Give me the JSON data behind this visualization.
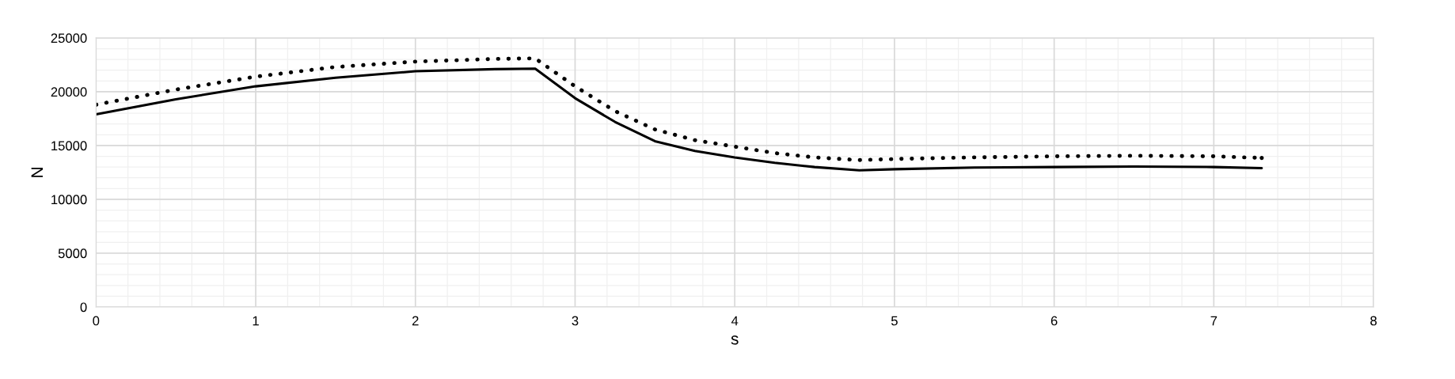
{
  "chart_data": {
    "type": "line",
    "xlabel": "s",
    "ylabel": "N",
    "xlim": [
      0,
      8
    ],
    "xticks": [
      0,
      1,
      2,
      3,
      4,
      5,
      6,
      7,
      8
    ],
    "ylim": [
      0,
      25000
    ],
    "yticks": [
      0,
      5000,
      10000,
      15000,
      20000,
      25000
    ],
    "grid": true,
    "legend": false,
    "series": [
      {
        "color": "#000000",
        "line_style": "solid",
        "x": [
          0,
          0.5,
          1,
          1.5,
          2,
          2.5,
          2.75,
          3,
          3.25,
          3.5,
          3.75,
          4,
          4.25,
          4.5,
          4.78,
          5,
          5.5,
          6,
          6.5,
          7,
          7.3
        ],
        "values": [
          17900,
          19300,
          20500,
          21300,
          21900,
          22100,
          22150,
          19400,
          17200,
          15400,
          14500,
          13900,
          13400,
          13000,
          12700,
          12800,
          12950,
          13000,
          13050,
          13000,
          12900
        ]
      },
      {
        "color": "#000000",
        "line_style": "dotted",
        "x": [
          0,
          0.5,
          1,
          1.5,
          2,
          2.5,
          2.75,
          3,
          3.25,
          3.5,
          3.75,
          4,
          4.25,
          4.5,
          4.78,
          5,
          5.5,
          6,
          6.5,
          7,
          7.3
        ],
        "values": [
          18800,
          20200,
          21400,
          22300,
          22800,
          23050,
          23100,
          20500,
          18200,
          16500,
          15500,
          14900,
          14300,
          13900,
          13650,
          13750,
          13900,
          14000,
          14050,
          14000,
          13850
        ]
      }
    ]
  }
}
